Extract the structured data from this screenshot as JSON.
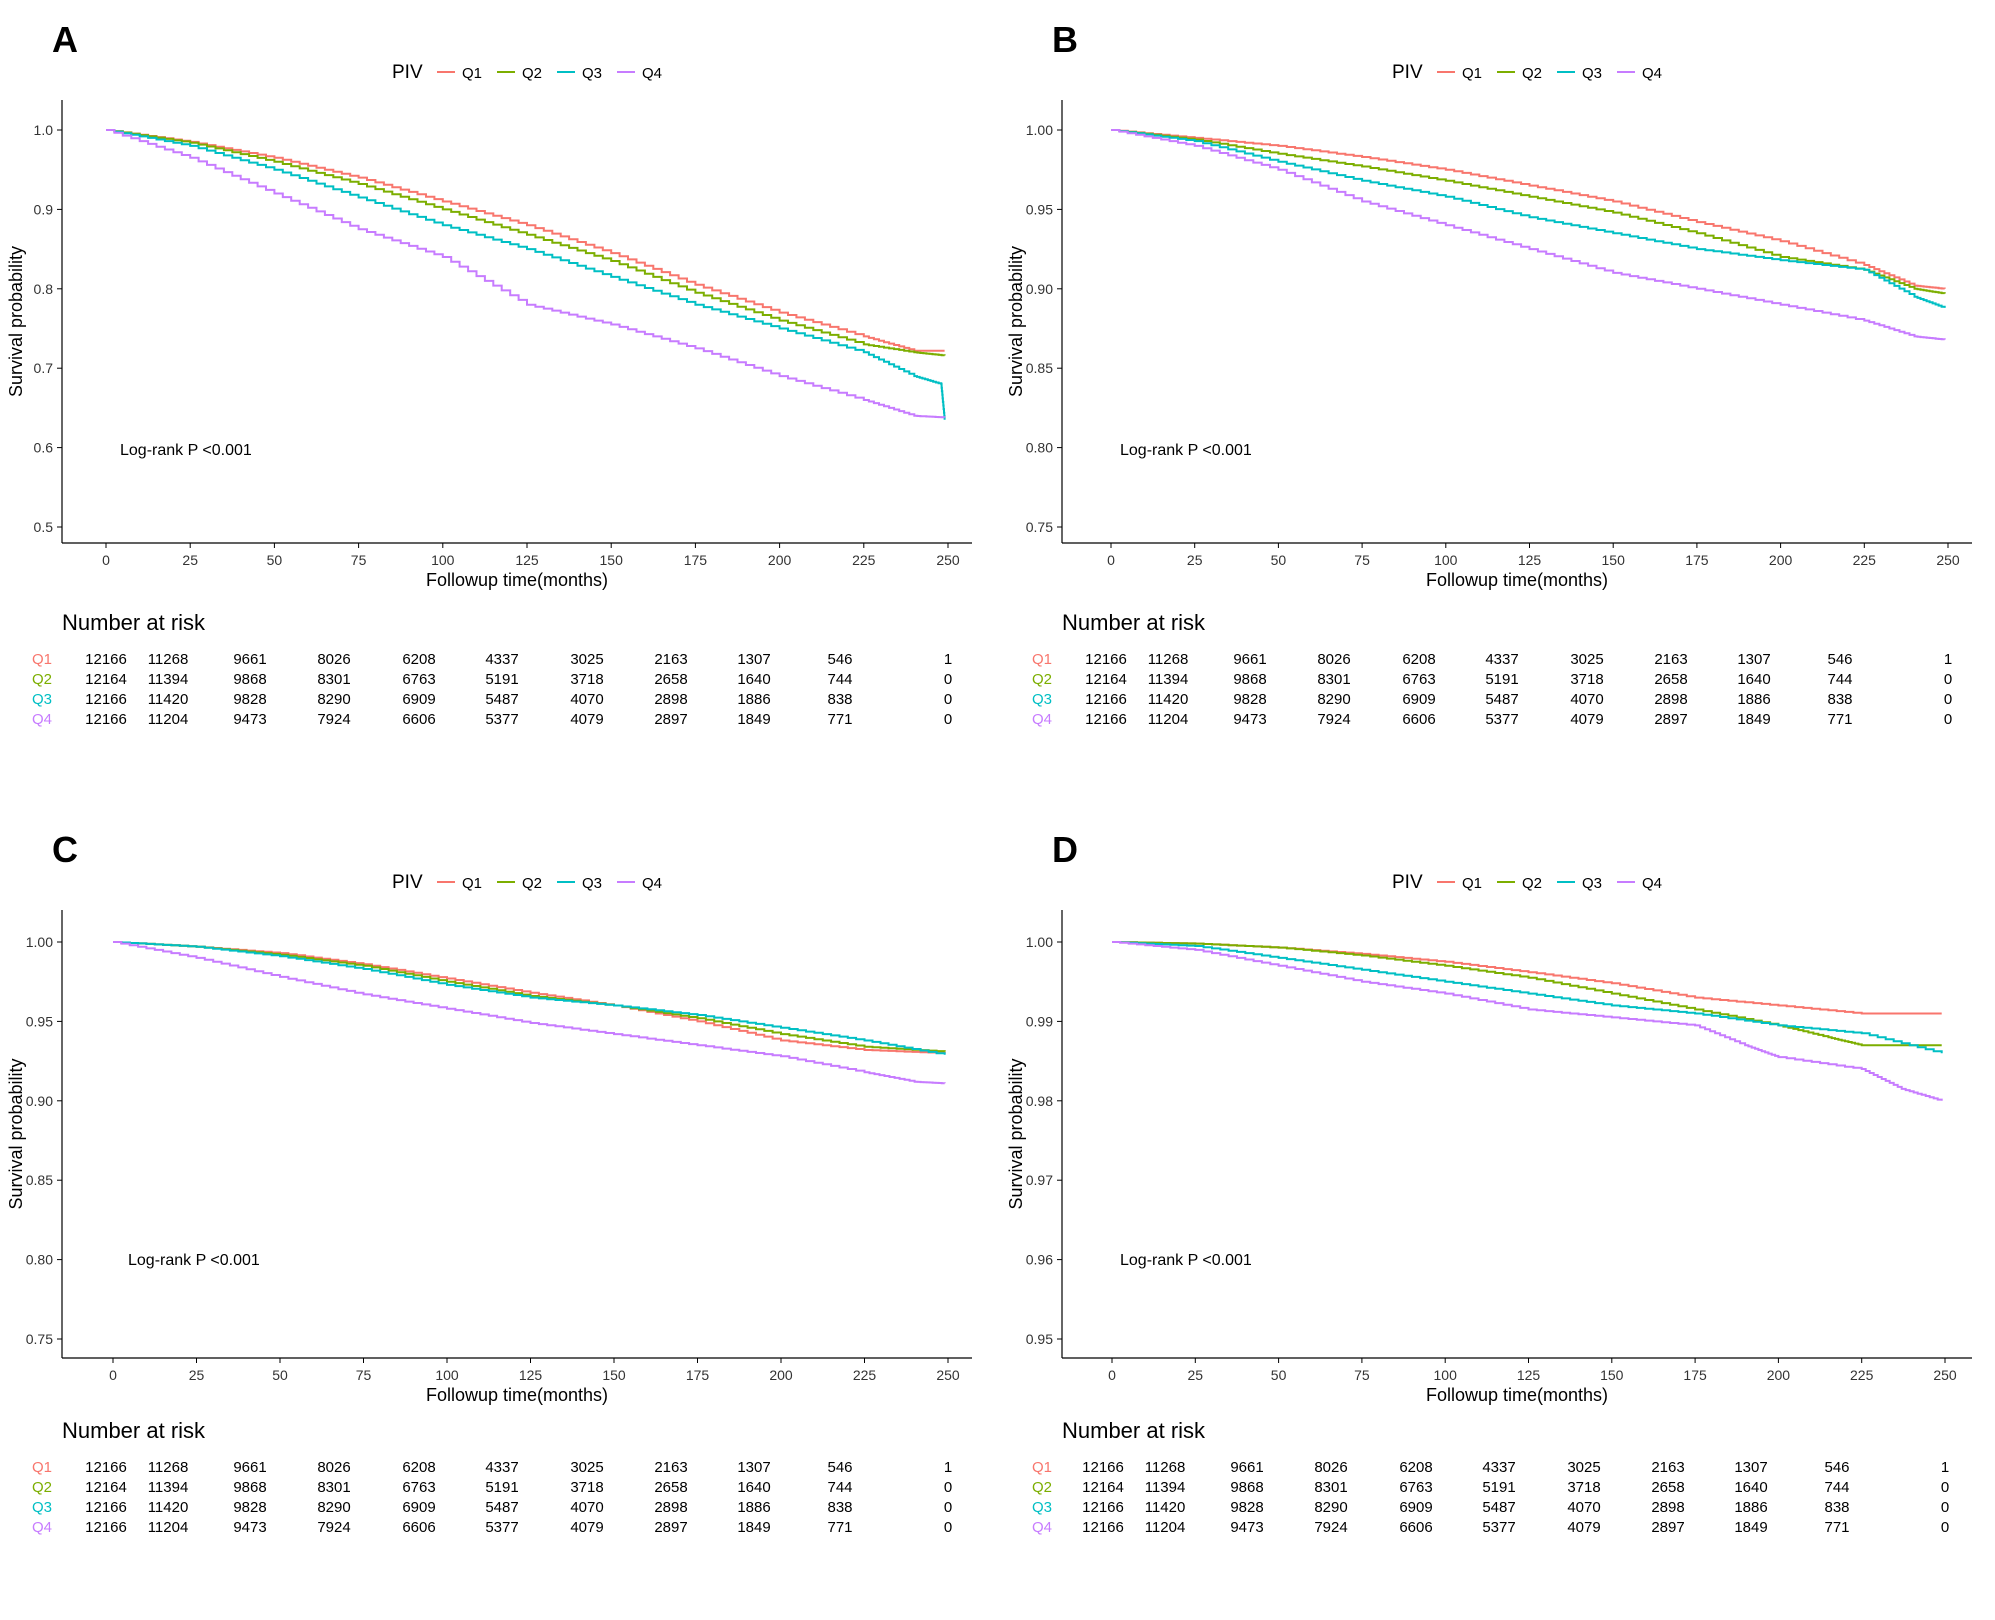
{
  "chart_data": [
    {
      "panel_label": "A",
      "type": "line",
      "legend_title": "PIV",
      "legend_position": "top",
      "ylabel": "Survival probability",
      "xlabel": "Followup time(months)",
      "ylim": [
        0.5,
        1.0
      ],
      "yticks": [
        "0.5",
        "0.6",
        "0.7",
        "0.8",
        "0.9",
        "1.0"
      ],
      "xlim": [
        0,
        250
      ],
      "xticks": [
        "0",
        "25",
        "50",
        "75",
        "100",
        "125",
        "150",
        "175",
        "200",
        "225",
        "250"
      ],
      "annotation": "Log-rank P <0.001",
      "series": [
        {
          "name": "Q1",
          "color": "#F8766D",
          "x": [
            0,
            25,
            50,
            75,
            100,
            125,
            150,
            175,
            200,
            225,
            240,
            249
          ],
          "y": [
            1.0,
            0.985,
            0.965,
            0.94,
            0.91,
            0.88,
            0.845,
            0.805,
            0.77,
            0.74,
            0.722,
            0.722
          ]
        },
        {
          "name": "Q2",
          "color": "#7CAE00",
          "x": [
            0,
            25,
            50,
            75,
            100,
            125,
            150,
            175,
            200,
            225,
            240,
            249
          ],
          "y": [
            1.0,
            0.984,
            0.96,
            0.932,
            0.9,
            0.868,
            0.835,
            0.795,
            0.76,
            0.73,
            0.72,
            0.716
          ]
        },
        {
          "name": "Q3",
          "color": "#00BFC4",
          "x": [
            0,
            25,
            50,
            75,
            100,
            125,
            150,
            175,
            200,
            225,
            240,
            248,
            249
          ],
          "y": [
            1.0,
            0.98,
            0.95,
            0.915,
            0.88,
            0.85,
            0.815,
            0.78,
            0.75,
            0.72,
            0.69,
            0.68,
            0.635
          ]
        },
        {
          "name": "Q4",
          "color": "#C77CFF",
          "x": [
            0,
            25,
            50,
            75,
            100,
            125,
            150,
            175,
            200,
            225,
            240,
            249
          ],
          "y": [
            1.0,
            0.965,
            0.92,
            0.875,
            0.84,
            0.78,
            0.755,
            0.725,
            0.69,
            0.66,
            0.64,
            0.638
          ]
        }
      ],
      "risk_table": {
        "title": "Number at risk",
        "rows": [
          {
            "name": "Q1",
            "color": "#F8766D",
            "values": [
              "12166",
              "11268",
              "9661",
              "8026",
              "6208",
              "4337",
              "3025",
              "2163",
              "1307",
              "546",
              "1"
            ]
          },
          {
            "name": "Q2",
            "color": "#7CAE00",
            "values": [
              "12164",
              "11394",
              "9868",
              "8301",
              "6763",
              "5191",
              "3718",
              "2658",
              "1640",
              "744",
              "0"
            ]
          },
          {
            "name": "Q3",
            "color": "#00BFC4",
            "values": [
              "12166",
              "11420",
              "9828",
              "8290",
              "6909",
              "5487",
              "4070",
              "2898",
              "1886",
              "838",
              "0"
            ]
          },
          {
            "name": "Q4",
            "color": "#C77CFF",
            "values": [
              "12166",
              "11204",
              "9473",
              "7924",
              "6606",
              "5377",
              "4079",
              "2897",
              "1849",
              "771",
              "0"
            ]
          }
        ]
      }
    },
    {
      "panel_label": "B",
      "type": "line",
      "legend_title": "PIV",
      "legend_position": "top",
      "ylabel": "Survival probability",
      "xlabel": "Followup time(months)",
      "ylim": [
        0.75,
        1.0
      ],
      "yticks": [
        "0.75",
        "0.80",
        "0.85",
        "0.90",
        "0.95",
        "1.00"
      ],
      "xlim": [
        0,
        250
      ],
      "xticks": [
        "0",
        "25",
        "50",
        "75",
        "100",
        "125",
        "150",
        "175",
        "200",
        "225",
        "250"
      ],
      "annotation": "Log-rank P <0.001",
      "series": [
        {
          "name": "Q1",
          "color": "#F8766D",
          "x": [
            0,
            25,
            50,
            75,
            100,
            125,
            150,
            175,
            200,
            225,
            240,
            249
          ],
          "y": [
            1.0,
            0.995,
            0.99,
            0.983,
            0.975,
            0.965,
            0.955,
            0.942,
            0.93,
            0.915,
            0.902,
            0.9
          ]
        },
        {
          "name": "Q2",
          "color": "#7CAE00",
          "x": [
            0,
            25,
            50,
            75,
            100,
            125,
            150,
            175,
            200,
            225,
            240,
            249
          ],
          "y": [
            1.0,
            0.994,
            0.985,
            0.977,
            0.968,
            0.958,
            0.948,
            0.935,
            0.92,
            0.912,
            0.9,
            0.897
          ]
        },
        {
          "name": "Q3",
          "color": "#00BFC4",
          "x": [
            0,
            25,
            50,
            75,
            100,
            125,
            150,
            175,
            200,
            225,
            240,
            249
          ],
          "y": [
            1.0,
            0.993,
            0.98,
            0.968,
            0.958,
            0.945,
            0.935,
            0.925,
            0.918,
            0.912,
            0.895,
            0.888
          ]
        },
        {
          "name": "Q4",
          "color": "#C77CFF",
          "x": [
            0,
            25,
            50,
            75,
            100,
            125,
            150,
            175,
            200,
            225,
            240,
            249
          ],
          "y": [
            1.0,
            0.99,
            0.975,
            0.955,
            0.94,
            0.925,
            0.91,
            0.9,
            0.89,
            0.88,
            0.87,
            0.868
          ]
        }
      ],
      "risk_table": {
        "title": "Number at risk",
        "rows": [
          {
            "name": "Q1",
            "color": "#F8766D",
            "values": [
              "12166",
              "11268",
              "9661",
              "8026",
              "6208",
              "4337",
              "3025",
              "2163",
              "1307",
              "546",
              "1"
            ]
          },
          {
            "name": "Q2",
            "color": "#7CAE00",
            "values": [
              "12164",
              "11394",
              "9868",
              "8301",
              "6763",
              "5191",
              "3718",
              "2658",
              "1640",
              "744",
              "0"
            ]
          },
          {
            "name": "Q3",
            "color": "#00BFC4",
            "values": [
              "12166",
              "11420",
              "9828",
              "8290",
              "6909",
              "5487",
              "4070",
              "2898",
              "1886",
              "838",
              "0"
            ]
          },
          {
            "name": "Q4",
            "color": "#C77CFF",
            "values": [
              "12166",
              "11204",
              "9473",
              "7924",
              "6606",
              "5377",
              "4079",
              "2897",
              "1849",
              "771",
              "0"
            ]
          }
        ]
      }
    },
    {
      "panel_label": "C",
      "type": "line",
      "legend_title": "PIV",
      "legend_position": "top",
      "ylabel": "Survival probability",
      "xlabel": "Followup time(months)",
      "ylim": [
        0.75,
        1.0
      ],
      "yticks": [
        "0.75",
        "0.80",
        "0.85",
        "0.90",
        "0.95",
        "1.00"
      ],
      "xlim": [
        0,
        250
      ],
      "xticks": [
        "0",
        "25",
        "50",
        "75",
        "100",
        "125",
        "150",
        "175",
        "200",
        "225",
        "250"
      ],
      "annotation": "Log-rank P <0.001",
      "series": [
        {
          "name": "Q1",
          "color": "#F8766D",
          "x": [
            0,
            25,
            50,
            75,
            100,
            125,
            150,
            175,
            200,
            225,
            249
          ],
          "y": [
            1.0,
            0.997,
            0.993,
            0.986,
            0.977,
            0.968,
            0.96,
            0.95,
            0.938,
            0.932,
            0.93
          ]
        },
        {
          "name": "Q2",
          "color": "#7CAE00",
          "x": [
            0,
            25,
            50,
            75,
            100,
            125,
            150,
            175,
            200,
            225,
            249
          ],
          "y": [
            1.0,
            0.997,
            0.992,
            0.985,
            0.975,
            0.966,
            0.96,
            0.952,
            0.942,
            0.934,
            0.931
          ]
        },
        {
          "name": "Q3",
          "color": "#00BFC4",
          "x": [
            0,
            25,
            50,
            75,
            100,
            125,
            150,
            175,
            200,
            225,
            249
          ],
          "y": [
            1.0,
            0.997,
            0.991,
            0.983,
            0.973,
            0.965,
            0.96,
            0.954,
            0.946,
            0.938,
            0.929
          ]
        },
        {
          "name": "Q4",
          "color": "#C77CFF",
          "x": [
            0,
            25,
            50,
            75,
            100,
            125,
            150,
            175,
            200,
            225,
            240,
            249
          ],
          "y": [
            1.0,
            0.99,
            0.978,
            0.967,
            0.958,
            0.949,
            0.942,
            0.935,
            0.928,
            0.918,
            0.912,
            0.911
          ]
        }
      ],
      "risk_table": {
        "title": "Number at risk",
        "rows": [
          {
            "name": "Q1",
            "color": "#F8766D",
            "values": [
              "12166",
              "11268",
              "9661",
              "8026",
              "6208",
              "4337",
              "3025",
              "2163",
              "1307",
              "546",
              "1"
            ]
          },
          {
            "name": "Q2",
            "color": "#7CAE00",
            "values": [
              "12164",
              "11394",
              "9868",
              "8301",
              "6763",
              "5191",
              "3718",
              "2658",
              "1640",
              "744",
              "0"
            ]
          },
          {
            "name": "Q3",
            "color": "#00BFC4",
            "values": [
              "12166",
              "11420",
              "9828",
              "8290",
              "6909",
              "5487",
              "4070",
              "2898",
              "1886",
              "838",
              "0"
            ]
          },
          {
            "name": "Q4",
            "color": "#C77CFF",
            "values": [
              "12166",
              "11204",
              "9473",
              "7924",
              "6606",
              "5377",
              "4079",
              "2897",
              "1849",
              "771",
              "0"
            ]
          }
        ]
      }
    },
    {
      "panel_label": "D",
      "type": "line",
      "legend_title": "PIV",
      "legend_position": "top",
      "ylabel": "Survival probability",
      "xlabel": "Followup time(months)",
      "ylim": [
        0.95,
        1.0
      ],
      "yticks": [
        "0.95",
        "0.96",
        "0.97",
        "0.98",
        "0.99",
        "1.00"
      ],
      "xlim": [
        0,
        250
      ],
      "xticks": [
        "0",
        "25",
        "50",
        "75",
        "100",
        "125",
        "150",
        "175",
        "200",
        "225",
        "250"
      ],
      "annotation": "Log-rank P <0.001",
      "series": [
        {
          "name": "Q1",
          "color": "#F8766D",
          "x": [
            0,
            25,
            50,
            75,
            100,
            125,
            150,
            175,
            200,
            225,
            249
          ],
          "y": [
            1.0,
            0.9998,
            0.9993,
            0.9985,
            0.9975,
            0.9962,
            0.9948,
            0.993,
            0.992,
            0.991,
            0.991
          ]
        },
        {
          "name": "Q2",
          "color": "#7CAE00",
          "x": [
            0,
            25,
            50,
            75,
            100,
            125,
            150,
            175,
            200,
            215,
            225,
            249
          ],
          "y": [
            1.0,
            0.9998,
            0.9993,
            0.9983,
            0.997,
            0.9955,
            0.9935,
            0.9915,
            0.9895,
            0.988,
            0.987,
            0.987
          ]
        },
        {
          "name": "Q3",
          "color": "#00BFC4",
          "x": [
            0,
            25,
            50,
            75,
            100,
            125,
            150,
            175,
            200,
            225,
            249
          ],
          "y": [
            1.0,
            0.9995,
            0.998,
            0.9965,
            0.995,
            0.9935,
            0.992,
            0.991,
            0.9895,
            0.9885,
            0.986
          ]
        },
        {
          "name": "Q4",
          "color": "#C77CFF",
          "x": [
            0,
            25,
            50,
            75,
            100,
            125,
            150,
            175,
            190,
            200,
            225,
            237,
            249
          ],
          "y": [
            1.0,
            0.999,
            0.997,
            0.995,
            0.9935,
            0.9915,
            0.9905,
            0.9895,
            0.987,
            0.9855,
            0.984,
            0.9815,
            0.98
          ]
        }
      ],
      "risk_table": {
        "title": "Number at risk",
        "rows": [
          {
            "name": "Q1",
            "color": "#F8766D",
            "values": [
              "12166",
              "11268",
              "9661",
              "8026",
              "6208",
              "4337",
              "3025",
              "2163",
              "1307",
              "546",
              "1"
            ]
          },
          {
            "name": "Q2",
            "color": "#7CAE00",
            "values": [
              "12164",
              "11394",
              "9868",
              "8301",
              "6763",
              "5191",
              "3718",
              "2658",
              "1640",
              "744",
              "0"
            ]
          },
          {
            "name": "Q3",
            "color": "#00BFC4",
            "values": [
              "12166",
              "11420",
              "9828",
              "8290",
              "6909",
              "5487",
              "4070",
              "2898",
              "1886",
              "838",
              "0"
            ]
          },
          {
            "name": "Q4",
            "color": "#C77CFF",
            "values": [
              "12166",
              "11204",
              "9473",
              "7924",
              "6606",
              "5377",
              "4079",
              "2897",
              "1849",
              "771",
              "0"
            ]
          }
        ]
      }
    }
  ]
}
